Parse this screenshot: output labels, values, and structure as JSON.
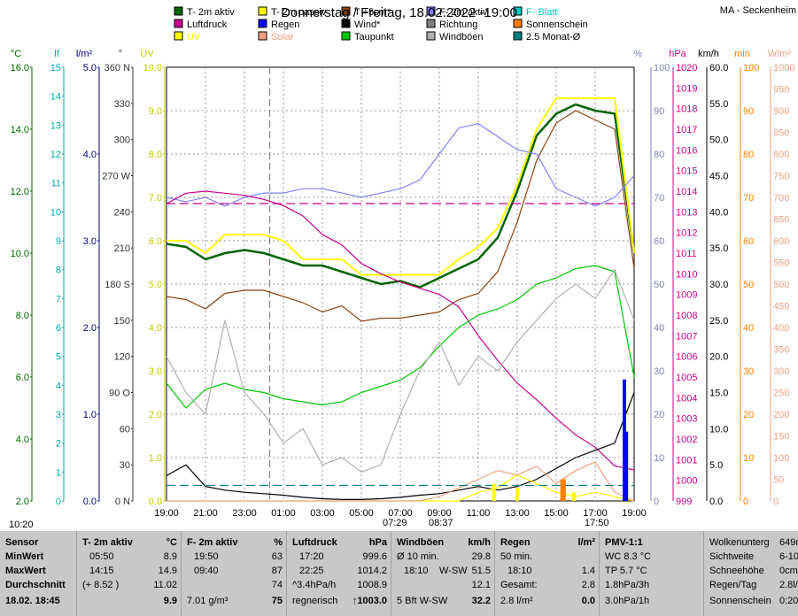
{
  "title": "Donnerstag / Freitag, 18.02.2022  -19:00",
  "station": "MA - Seckenheim",
  "legend": [
    {
      "label": "T- 2m aktiv",
      "color": "#006400"
    },
    {
      "label": "T- 2m passiv",
      "color": "#ffff00"
    },
    {
      "label": "T +5cm*",
      "color": "#8b4513"
    },
    {
      "label": "F- 2m aktiv",
      "color": "#8080ff"
    },
    {
      "label": "F- Blatt",
      "color": "#00c8c8"
    },
    {
      "label": "Luftdruck",
      "color": "#c8008c"
    },
    {
      "label": "Regen",
      "color": "#0000ff"
    },
    {
      "label": "Wind*",
      "color": "#000000"
    },
    {
      "label": "Richtung",
      "color": "#808080"
    },
    {
      "label": "Sonnenschein",
      "color": "#ff8000"
    },
    {
      "label": "UV",
      "color": "#ffff00"
    },
    {
      "label": "Solar",
      "color": "#f0a080"
    },
    {
      "label": "Taupunkt",
      "color": "#00c800"
    },
    {
      "label": "Windböen",
      "color": "#b0b0b0"
    },
    {
      "label": "2.5 Monat-Ø",
      "color": "#008080"
    }
  ],
  "axes": {
    "temp": {
      "unit": "°C",
      "ticks": [
        "16.0",
        "14.0",
        "12.0",
        "10.0",
        "8.0",
        "6.0",
        "4.0",
        "2.0"
      ],
      "color": "#006400"
    },
    "lf": {
      "unit": "lf",
      "ticks": [
        "15",
        "14",
        "13",
        "12",
        "11",
        "10",
        "9",
        "8",
        "7",
        "6",
        "5",
        "4",
        "3",
        "2",
        "1",
        "0"
      ],
      "color": "#00aaaa"
    },
    "rain": {
      "unit": "l/m²",
      "ticks": [
        "5.0",
        "4.0",
        "3.0",
        "2.0",
        "1.0",
        "0.0"
      ],
      "color": "#000080"
    },
    "dir": {
      "unit": "°",
      "ticks": [
        "360 N",
        "330",
        "300",
        "270 W",
        "240",
        "210",
        "180 S",
        "150",
        "120",
        "90 O",
        "60",
        "30",
        "0 N"
      ],
      "color": "#333333"
    },
    "uv": {
      "unit": "UV",
      "ticks": [
        "10.0",
        "9.0",
        "8.0",
        "7.0",
        "6.0",
        "5.0",
        "4.0",
        "3.0",
        "2.0",
        "1.0",
        "0.0"
      ],
      "color": "#c8c800"
    },
    "hum": {
      "unit": "%",
      "ticks": [
        "100",
        "90",
        "80",
        "70",
        "60",
        "50",
        "40",
        "30",
        "20",
        "10",
        "0"
      ],
      "color": "#8080c0"
    },
    "hpa": {
      "unit": "hPa",
      "ticks": [
        "1020",
        "1019",
        "1018",
        "1017",
        "1016",
        "1015",
        "1014",
        "1013",
        "1012",
        "1011",
        "1010",
        "1009",
        "1008",
        "1007",
        "1006",
        "1005",
        "1004",
        "1003",
        "1002",
        "1001",
        "1000",
        "999"
      ],
      "color": "#c8008c"
    },
    "kmh": {
      "unit": "km/h",
      "ticks": [
        "60.0",
        "55.0",
        "50.0",
        "45.0",
        "40.0",
        "35.0",
        "30.0",
        "25.0",
        "20.0",
        "15.0",
        "10.0",
        "5.0",
        "0.0"
      ],
      "color": "#000000"
    },
    "min": {
      "unit": "min",
      "ticks": [
        "100",
        "90",
        "80",
        "70",
        "60",
        "50",
        "40",
        "30",
        "20",
        "10",
        "0"
      ],
      "color": "#ff8000"
    },
    "wm2": {
      "unit": "W/m²",
      "ticks": [
        "1000",
        "950",
        "900",
        "850",
        "800",
        "750",
        "700",
        "650",
        "600",
        "550",
        "500",
        "450",
        "400",
        "350",
        "300",
        "250",
        "200",
        "150",
        "100",
        "50",
        "0"
      ],
      "color": "#f0a080"
    }
  },
  "time_ticks": [
    "19:00",
    "21:00",
    "23:00",
    "01:00",
    "03:00",
    "05:00",
    "07:00",
    "09:00",
    "11:00",
    "13:00",
    "15:00",
    "17:00",
    "19:00"
  ],
  "time_markers": [
    "10:20",
    "07:29",
    "08:37",
    "17:50"
  ],
  "chart_data": {
    "type": "line",
    "x_hours": [
      0,
      1,
      2,
      3,
      4,
      5,
      6,
      7,
      8,
      9,
      10,
      11,
      12,
      13,
      14,
      15,
      16,
      17,
      18,
      19,
      20,
      21,
      22,
      23,
      24
    ],
    "series": [
      {
        "name": "T- 2m aktiv",
        "axis": "temp",
        "color": "#006400",
        "values": [
          10.3,
          10.2,
          9.8,
          10.0,
          10.1,
          10.0,
          9.8,
          9.6,
          9.6,
          9.4,
          9.2,
          9.0,
          9.1,
          8.9,
          9.2,
          9.5,
          9.8,
          10.5,
          12.0,
          13.8,
          14.5,
          14.8,
          14.6,
          14.5,
          10.0
        ]
      },
      {
        "name": "T- 2m passiv",
        "axis": "temp",
        "color": "#ffff00",
        "values": [
          10.4,
          10.4,
          10.0,
          10.6,
          10.6,
          10.6,
          10.4,
          9.8,
          9.8,
          9.8,
          9.3,
          9.3,
          9.3,
          9.3,
          9.3,
          9.8,
          10.2,
          10.8,
          12.2,
          14.0,
          15.0,
          15.0,
          15.0,
          15.0,
          10.0
        ]
      },
      {
        "name": "T +5cm*",
        "axis": "temp",
        "color": "#8b4513",
        "values": [
          8.6,
          8.5,
          8.2,
          8.7,
          8.8,
          8.8,
          8.6,
          8.4,
          8.1,
          8.3,
          7.8,
          7.9,
          7.9,
          8.0,
          8.1,
          8.5,
          8.7,
          9.4,
          11.0,
          13.0,
          14.2,
          14.6,
          14.3,
          14.0,
          9.5
        ]
      },
      {
        "name": "F- 2m aktiv",
        "axis": "hum",
        "color": "#8080ff",
        "values": [
          70,
          69,
          70,
          68,
          70,
          71,
          71,
          72,
          72,
          71,
          70,
          71,
          72,
          74,
          80,
          86,
          87,
          84,
          81,
          80,
          72,
          70,
          68,
          70,
          75
        ]
      },
      {
        "name": "Luftdruck",
        "axis": "hpa",
        "color": "#c8008c",
        "values": [
          1013.4,
          1013.9,
          1014.0,
          1013.9,
          1013.8,
          1013.6,
          1013.3,
          1012.8,
          1011.9,
          1011.4,
          1010.5,
          1010.0,
          1009.6,
          1009.3,
          1009.0,
          1008.4,
          1007.0,
          1005.8,
          1004.7,
          1003.9,
          1003.0,
          1002.2,
          1001.6,
          1000.7,
          1000.5
        ]
      },
      {
        "name": "Taupunkt",
        "axis": "temp",
        "color": "#00c800",
        "values": [
          5.8,
          5.0,
          5.6,
          5.8,
          5.6,
          5.5,
          5.3,
          5.2,
          5.1,
          5.2,
          5.5,
          5.7,
          5.9,
          6.3,
          7.0,
          7.6,
          8.0,
          8.2,
          8.5,
          9.0,
          9.2,
          9.5,
          9.6,
          9.4,
          6.0
        ]
      },
      {
        "name": "Wind*",
        "axis": "kmh",
        "color": "#000000",
        "values": [
          3.5,
          5.0,
          2.0,
          1.5,
          1.2,
          1.0,
          0.8,
          0.5,
          0.3,
          0.2,
          0.2,
          0.3,
          0.5,
          0.8,
          1.0,
          1.5,
          2.0,
          1.5,
          2.0,
          3.0,
          4.5,
          6.0,
          7.0,
          8.0,
          15.0
        ]
      },
      {
        "name": "Windböen",
        "axis": "kmh",
        "color": "#b0b0b0",
        "values": [
          20,
          15,
          12,
          25,
          15,
          12,
          8,
          10,
          5,
          6,
          4,
          5,
          12,
          18,
          22,
          16,
          20,
          18,
          22,
          25,
          28,
          30,
          28,
          32,
          25
        ]
      },
      {
        "name": "UV",
        "axis": "uv",
        "color": "#ffff00",
        "values": [
          0,
          0,
          0,
          0,
          0,
          0,
          0,
          0,
          0,
          0,
          0,
          0,
          0,
          0,
          0,
          0,
          0.2,
          0.3,
          0.6,
          0.4,
          0.2,
          0.1,
          0.2,
          0.1,
          0
        ]
      },
      {
        "name": "Solar",
        "axis": "wm2",
        "color": "#f0a080",
        "values": [
          0,
          0,
          0,
          0,
          0,
          0,
          0,
          0,
          0,
          0,
          0,
          0,
          0,
          0,
          10,
          30,
          50,
          70,
          60,
          80,
          40,
          70,
          90,
          20,
          0
        ]
      },
      {
        "name": "2.5 Monat-Ø",
        "axis": "temp",
        "color": "#008080",
        "values": [
          2.5,
          2.5,
          2.5,
          2.5,
          2.5,
          2.5,
          2.5,
          2.5,
          2.5,
          2.5,
          2.5,
          2.5,
          2.5,
          2.5,
          2.5,
          2.5,
          2.5,
          2.5,
          2.5,
          2.5,
          2.5,
          2.5,
          2.5,
          2.5,
          2.5
        ]
      },
      {
        "name": "Luftdruck-Ø",
        "axis": "hpa",
        "color": "#c8008c",
        "values": [
          1013.4,
          1013.4,
          1013.4,
          1013.4,
          1013.4,
          1013.4,
          1013.4,
          1013.4,
          1013.4,
          1013.4,
          1013.4,
          1013.4,
          1013.4,
          1013.4,
          1013.4,
          1013.4,
          1013.4,
          1013.4,
          1013.4,
          1013.4,
          1013.4,
          1013.4,
          1013.4,
          1013.4,
          1013.4
        ]
      }
    ],
    "bars": [
      {
        "name": "Sonnenschein",
        "axis": "min",
        "color": "#ff8000",
        "x": [
          20.3,
          20.4
        ],
        "values": [
          5,
          5
        ]
      },
      {
        "name": "Regen",
        "axis": "rain",
        "color": "#0000ff",
        "x": [
          23.5,
          23.6
        ],
        "values": [
          1.4,
          0.8
        ]
      },
      {
        "name": "UV",
        "axis": "uv",
        "color": "#ffff00",
        "x": [
          16.8,
          18.0,
          20.9
        ],
        "values": [
          0.4,
          0.3,
          0.2
        ]
      }
    ]
  },
  "panel": {
    "sensor": {
      "h": "Sensor",
      "min": "MinWert",
      "max": "MaxWert",
      "avg": "Durchschnitt",
      "date": "18.02. 18:45"
    },
    "t2m": {
      "h": "T- 2m aktiv",
      "u": "°C",
      "min_t": "05:50",
      "min_v": "8.9",
      "max_t": "14:15",
      "max_v": "14.9",
      "avg_a": "(+ 8.52 )",
      "avg_v": "11.02",
      "cur": "9.9"
    },
    "f2m": {
      "h": "F- 2m aktiv",
      "u": "%",
      "min_t": "19:50",
      "min_v": "63",
      "max_t": "09:40",
      "max_v": "87",
      "avg_v": "74",
      "cur_a": "7.01 g/m³",
      "cur": "75"
    },
    "press": {
      "h": "Luftdruck",
      "u": "hPa",
      "min_t": "17:20",
      "min_v": "999.6",
      "max_t": "22:25",
      "max_v": "1014.2",
      "avg_a": "^3.4hPa/h",
      "avg_v": "1008.9",
      "cur_a": "regnerisch",
      "cur": "↑1003.0"
    },
    "wind": {
      "h": "Windböen",
      "u": "km/h",
      "min_t": "Ø 10 min.",
      "min_v": "29.8",
      "max_t": "18:10",
      "max_d": "W-SW",
      "max_v": "51.5",
      "avg_v": "12.1",
      "cur_a": "5 Bft W-SW",
      "cur": "32.2"
    },
    "rain": {
      "h": "Regen",
      "u": "l/m²",
      "min_t": "50 min.",
      "min_v": "",
      "max_t": "18:10",
      "max_v": "1.4",
      "avg_a": "Gesamt:",
      "avg_v": "2.8",
      "cur_a": "2.8 l/m²",
      "cur": "0.0"
    },
    "pmv": {
      "h": "PMV-1:1",
      "r1": "WC 8.3 °C",
      "r2": "TP 5.7 °C",
      "r3": "1.8hPa/3h",
      "r4": "3.0hPa/1h"
    },
    "extra": {
      "r0": "Wolkenunterg",
      "v0": "649m",
      "r1": "Sichtweite",
      "v1": "6-10km",
      "r2": "Schneehöhe",
      "v2": "0cm",
      "r3": "Regen/Tag",
      "v3": "2.8l/m",
      "r4": "Sonnenschein",
      "v4": "0:20"
    }
  }
}
